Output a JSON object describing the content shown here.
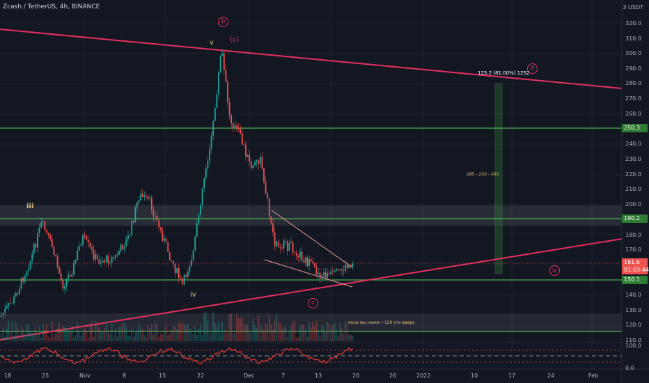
{
  "header": {
    "symbol_line": "Zcash / TetherUS, 4h, BINANCE",
    "unit": "3 USDT"
  },
  "price_axis": {
    "labels": [
      "320.0",
      "310.0",
      "300.0",
      "290.0",
      "280.0",
      "270.0",
      "260.0",
      "240.0",
      "230.0",
      "220.0",
      "210.0",
      "200.0",
      "180.0",
      "170.0",
      "140.0",
      "130.0",
      "120.0",
      "110.0",
      "100.0",
      "0.0"
    ],
    "tags": {
      "p250": "250.3",
      "p190": "190.2",
      "price": "161.6",
      "countdown": "01:03:44",
      "p150": "150.1"
    }
  },
  "time_axis": {
    "labels": [
      "18",
      "25",
      "Nov",
      "8",
      "15",
      "22",
      "Dec",
      "7",
      "13",
      "20",
      "26",
      "2022",
      "10",
      "17",
      "24",
      "Feb"
    ]
  },
  "annotations": {
    "b": "b",
    "c_top": "(c)",
    "v": "v",
    "iii": "iii",
    "iv": "iv",
    "c_bottom": "c",
    "d": "d",
    "iv_right": "iv",
    "target": "125.2 (81.00%) 1252",
    "range_note": "185 - 220 - 260",
    "bottom_note": "пока мы ниже ~120 это вверх"
  },
  "colors": {
    "bg": "#131722",
    "up": "#26a69a",
    "down": "#ef5350",
    "pink": "#e8305c",
    "green": "#4caf50"
  }
}
